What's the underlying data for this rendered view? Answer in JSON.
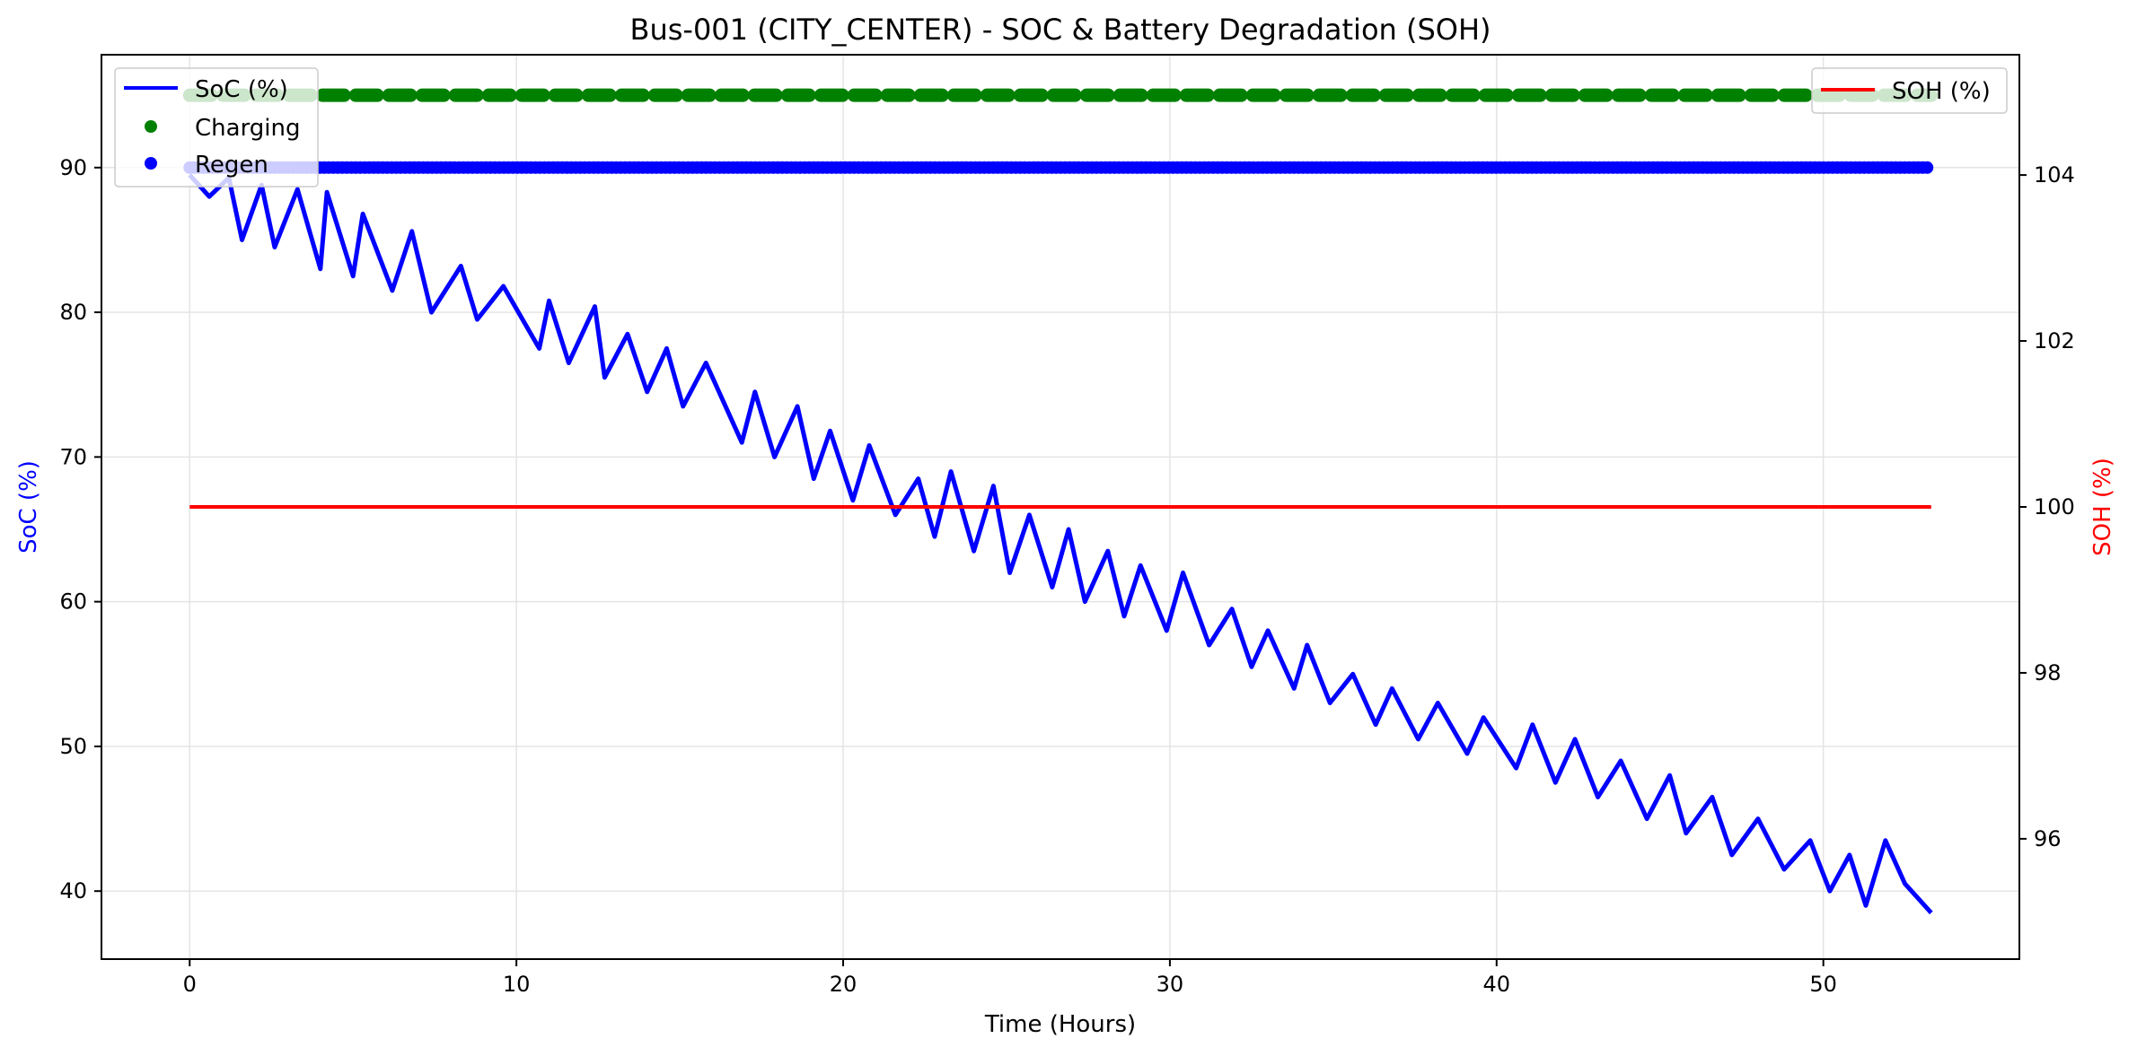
{
  "chart_data": {
    "type": "line",
    "title": "Bus-001 (CITY_CENTER) - SOC & Battery Degradation (SOH)",
    "xlabel": "Time (Hours)",
    "ylabel_left": "SoC (%)",
    "ylabel_right": "SOH (%)",
    "xlim": [
      -2.7,
      56.0
    ],
    "ylim_left": [
      35.3,
      97.8
    ],
    "ylim_right": [
      94.55,
      105.45
    ],
    "x_ticks": [
      0,
      10,
      20,
      30,
      40,
      50
    ],
    "y_left_ticks": [
      40,
      50,
      60,
      70,
      80,
      90
    ],
    "y_right_ticks": [
      96,
      98,
      100,
      102,
      104
    ],
    "grid": true,
    "legend_left": {
      "placement": "top-left",
      "entries": [
        {
          "label": "SoC (%)",
          "marker": "line",
          "color": "#0000ff"
        },
        {
          "label": "Charging",
          "marker": "dot",
          "color": "#008000"
        },
        {
          "label": "Regen",
          "marker": "dot",
          "color": "#0000ff"
        }
      ]
    },
    "legend_right": {
      "placement": "top-right",
      "entries": [
        {
          "label": "SOH (%)",
          "marker": "line",
          "color": "#ff0000"
        }
      ]
    },
    "series": [
      {
        "name": "SoC (%)",
        "axis": "left",
        "style": "line",
        "color": "#0000ff",
        "x": [
          0,
          0.6,
          1.2,
          1.6,
          2.2,
          2.6,
          3.3,
          4.0,
          4.2,
          5.0,
          5.3,
          6.2,
          6.8,
          7.4,
          8.3,
          8.8,
          9.6,
          10.7,
          11.0,
          11.6,
          12.4,
          12.7,
          13.4,
          14.0,
          14.6,
          15.1,
          15.8,
          16.9,
          17.3,
          17.9,
          18.6,
          19.1,
          19.6,
          20.3,
          20.8,
          21.6,
          22.3,
          22.8,
          23.3,
          24.0,
          24.6,
          25.1,
          25.7,
          26.4,
          26.9,
          27.4,
          28.1,
          28.6,
          29.1,
          29.9,
          30.4,
          31.2,
          31.9,
          32.5,
          33.0,
          33.8,
          34.2,
          34.9,
          35.6,
          36.3,
          36.8,
          37.6,
          38.2,
          39.1,
          39.6,
          40.6,
          41.1,
          41.8,
          42.4,
          43.1,
          43.8,
          44.6,
          45.3,
          45.8,
          46.6,
          47.2,
          48.0,
          48.8,
          49.6,
          50.2,
          50.8,
          51.3,
          51.9,
          52.5,
          53.3
        ],
        "values": [
          89.5,
          88.0,
          89.3,
          85.0,
          88.8,
          84.5,
          88.5,
          83.0,
          88.3,
          82.5,
          86.8,
          81.5,
          85.6,
          80.0,
          83.2,
          79.5,
          81.8,
          77.5,
          80.8,
          76.5,
          80.4,
          75.5,
          78.5,
          74.5,
          77.5,
          73.5,
          76.5,
          71.0,
          74.5,
          70.0,
          73.5,
          68.5,
          71.8,
          67.0,
          70.8,
          66.0,
          68.5,
          64.5,
          69.0,
          63.5,
          68.0,
          62.0,
          66.0,
          61.0,
          65.0,
          60.0,
          63.5,
          59.0,
          62.5,
          58.0,
          62.0,
          57.0,
          59.5,
          55.5,
          58.0,
          54.0,
          57.0,
          53.0,
          55.0,
          51.5,
          54.0,
          50.5,
          53.0,
          49.5,
          52.0,
          48.5,
          51.5,
          47.5,
          50.5,
          46.5,
          49.0,
          45.0,
          48.0,
          44.0,
          46.5,
          42.5,
          45.0,
          41.5,
          43.5,
          40.0,
          42.5,
          39.0,
          43.5,
          40.5,
          38.5
        ]
      },
      {
        "name": "Regen",
        "axis": "left",
        "style": "dots",
        "color": "#0000ff",
        "x_range": [
          0,
          53.3
        ],
        "value": 90
      },
      {
        "name": "Charging",
        "axis": "left",
        "style": "dashed",
        "color": "#008000",
        "x_range": [
          0,
          53.3
        ],
        "value": 95
      },
      {
        "name": "SOH (%)",
        "axis": "right",
        "style": "line",
        "color": "#ff0000",
        "x_range": [
          0,
          53.3
        ],
        "value": 100
      }
    ]
  }
}
